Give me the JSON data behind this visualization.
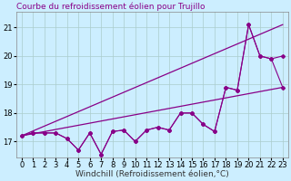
{
  "title": "Courbe du refroidissement éolien pour Trujillo",
  "xlabel": "Windchill (Refroidissement éolien,°C)",
  "bg_color": "#cceeff",
  "grid_color": "#aacccc",
  "line_color": "#880088",
  "xlim": [
    -0.5,
    23.5
  ],
  "ylim": [
    16.45,
    21.55
  ],
  "yticks": [
    17,
    18,
    19,
    20,
    21
  ],
  "xticks": [
    0,
    1,
    2,
    3,
    4,
    5,
    6,
    7,
    8,
    9,
    10,
    11,
    12,
    13,
    14,
    15,
    16,
    17,
    18,
    19,
    20,
    21,
    22,
    23
  ],
  "line1_x": [
    0,
    23
  ],
  "line1_y": [
    17.2,
    18.9
  ],
  "line2_x": [
    0,
    23
  ],
  "line2_y": [
    17.2,
    21.1
  ],
  "zigzag1_x": [
    0,
    1,
    2,
    3,
    4,
    5,
    6,
    7,
    8,
    9,
    10,
    11,
    12,
    13,
    14,
    15,
    16,
    17,
    18,
    19,
    20,
    21,
    22,
    23
  ],
  "zigzag1_y": [
    17.2,
    17.3,
    17.3,
    17.3,
    17.1,
    16.7,
    17.3,
    16.55,
    17.35,
    17.4,
    17.0,
    17.4,
    17.5,
    17.4,
    18.0,
    18.0,
    17.6,
    17.35,
    18.9,
    18.8,
    21.1,
    20.0,
    19.9,
    20.0
  ],
  "zigzag2_x": [
    0,
    1,
    2,
    3,
    4,
    5,
    6,
    7,
    8,
    9,
    10,
    11,
    12,
    13,
    14,
    15,
    16,
    17,
    18,
    19,
    20,
    21,
    22,
    23
  ],
  "zigzag2_y": [
    17.2,
    17.3,
    17.3,
    17.3,
    17.1,
    16.7,
    17.3,
    16.55,
    17.35,
    17.4,
    17.0,
    17.4,
    17.5,
    17.4,
    18.0,
    18.0,
    17.6,
    17.35,
    18.9,
    18.8,
    21.1,
    20.0,
    19.9,
    18.9
  ],
  "title_fontsize": 6.5,
  "xlabel_fontsize": 6.5,
  "tick_fontsize": 6.0
}
